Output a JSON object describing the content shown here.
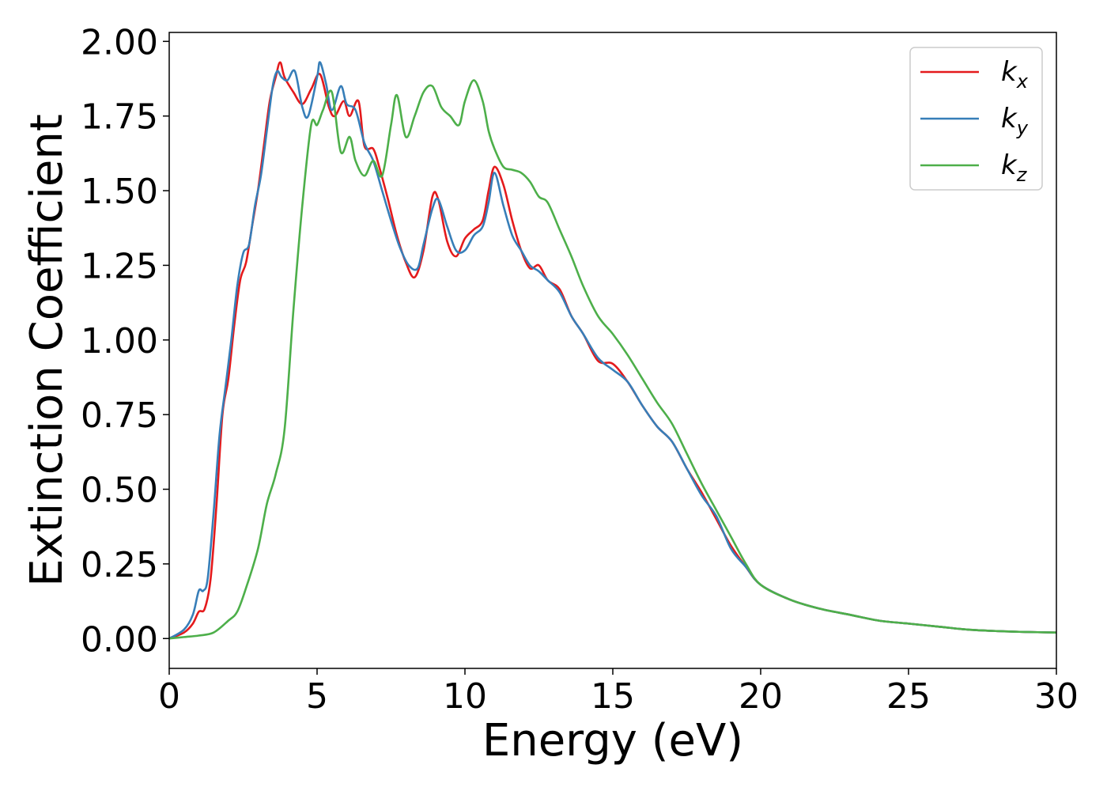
{
  "chart_data": {
    "type": "line",
    "title": "",
    "xlabel": "Energy (eV)",
    "ylabel": "Extinction Coefficient",
    "xlim": [
      0,
      30
    ],
    "ylim": [
      -0.1,
      2.03
    ],
    "xticks": [
      0,
      5,
      10,
      15,
      20,
      25,
      30
    ],
    "yticks": [
      "0.00",
      "0.25",
      "0.50",
      "0.75",
      "1.00",
      "1.25",
      "1.50",
      "1.75",
      "2.00"
    ],
    "grid": false,
    "legend_position": "top-right",
    "series": [
      {
        "name": "k_x",
        "legend_main": "k",
        "legend_sub": "x",
        "color": "#e41a1c",
        "x": [
          0,
          0.5,
          0.8,
          1.0,
          1.2,
          1.4,
          1.6,
          1.8,
          2.0,
          2.2,
          2.4,
          2.6,
          2.8,
          3.0,
          3.2,
          3.4,
          3.6,
          3.75,
          3.9,
          4.2,
          4.5,
          4.8,
          5.1,
          5.4,
          5.6,
          5.9,
          6.1,
          6.4,
          6.6,
          6.9,
          7.1,
          7.4,
          7.7,
          8.0,
          8.3,
          8.6,
          8.9,
          9.1,
          9.4,
          9.7,
          10.0,
          10.3,
          10.6,
          10.8,
          11.0,
          11.3,
          11.6,
          11.9,
          12.2,
          12.5,
          12.8,
          13.2,
          13.6,
          14.0,
          14.5,
          15.0,
          15.5,
          16.0,
          16.5,
          17.0,
          17.5,
          18.0,
          18.5,
          19.0,
          19.5,
          20.0,
          21.0,
          22.0,
          23.0,
          24.0,
          25.0,
          26.0,
          27.0,
          28.0,
          29.0,
          30.0
        ],
        "y": [
          0,
          0.02,
          0.05,
          0.09,
          0.1,
          0.2,
          0.45,
          0.75,
          0.87,
          1.05,
          1.2,
          1.26,
          1.38,
          1.5,
          1.65,
          1.8,
          1.88,
          1.93,
          1.88,
          1.83,
          1.79,
          1.84,
          1.89,
          1.78,
          1.75,
          1.8,
          1.75,
          1.8,
          1.65,
          1.64,
          1.58,
          1.47,
          1.35,
          1.26,
          1.21,
          1.3,
          1.48,
          1.47,
          1.33,
          1.28,
          1.34,
          1.37,
          1.4,
          1.5,
          1.58,
          1.52,
          1.4,
          1.3,
          1.24,
          1.25,
          1.2,
          1.17,
          1.08,
          1.02,
          0.93,
          0.92,
          0.86,
          0.78,
          0.71,
          0.66,
          0.57,
          0.49,
          0.4,
          0.31,
          0.24,
          0.18,
          0.13,
          0.1,
          0.08,
          0.06,
          0.05,
          0.04,
          0.03,
          0.025,
          0.022,
          0.02
        ]
      },
      {
        "name": "k_y",
        "legend_main": "k",
        "legend_sub": "y",
        "color": "#377eb8",
        "x": [
          0,
          0.5,
          0.8,
          1.0,
          1.15,
          1.3,
          1.5,
          1.7,
          1.9,
          2.1,
          2.3,
          2.5,
          2.7,
          2.9,
          3.1,
          3.3,
          3.5,
          3.65,
          3.8,
          4.0,
          4.25,
          4.5,
          4.7,
          5.0,
          5.1,
          5.3,
          5.5,
          5.8,
          6.0,
          6.3,
          6.6,
          6.9,
          7.2,
          7.5,
          7.8,
          8.1,
          8.4,
          8.6,
          8.9,
          9.1,
          9.4,
          9.7,
          10.0,
          10.3,
          10.6,
          10.8,
          11.0,
          11.3,
          11.6,
          11.9,
          12.2,
          12.5,
          12.8,
          13.2,
          13.6,
          14.0,
          14.5,
          15.0,
          15.5,
          16.0,
          16.5,
          17.0,
          17.5,
          18.0,
          18.5,
          19.0,
          19.5,
          20.0,
          21.0,
          22.0,
          23.0,
          24.0,
          25.0,
          26.0,
          27.0,
          28.0,
          29.0,
          30.0
        ],
        "y": [
          0,
          0.03,
          0.08,
          0.16,
          0.16,
          0.2,
          0.42,
          0.68,
          0.84,
          1.0,
          1.18,
          1.29,
          1.32,
          1.45,
          1.55,
          1.7,
          1.85,
          1.9,
          1.88,
          1.87,
          1.9,
          1.78,
          1.75,
          1.88,
          1.93,
          1.86,
          1.77,
          1.85,
          1.79,
          1.77,
          1.66,
          1.6,
          1.5,
          1.4,
          1.31,
          1.25,
          1.24,
          1.32,
          1.44,
          1.47,
          1.38,
          1.3,
          1.3,
          1.35,
          1.38,
          1.46,
          1.56,
          1.45,
          1.35,
          1.3,
          1.25,
          1.23,
          1.2,
          1.16,
          1.08,
          1.02,
          0.94,
          0.9,
          0.86,
          0.78,
          0.71,
          0.66,
          0.57,
          0.48,
          0.41,
          0.3,
          0.24,
          0.18,
          0.13,
          0.1,
          0.08,
          0.06,
          0.05,
          0.04,
          0.03,
          0.025,
          0.022,
          0.02
        ]
      },
      {
        "name": "k_z",
        "legend_main": "k",
        "legend_sub": "z",
        "color": "#4daf4a",
        "x": [
          0,
          0.5,
          1.0,
          1.5,
          2.0,
          2.3,
          2.6,
          3.0,
          3.3,
          3.6,
          3.9,
          4.2,
          4.5,
          4.8,
          5.0,
          5.2,
          5.5,
          5.8,
          6.1,
          6.3,
          6.6,
          6.9,
          7.2,
          7.5,
          7.7,
          8.0,
          8.3,
          8.6,
          8.9,
          9.2,
          9.5,
          9.8,
          10.0,
          10.3,
          10.6,
          10.8,
          11.0,
          11.3,
          11.6,
          11.9,
          12.2,
          12.5,
          12.8,
          13.2,
          13.6,
          14.0,
          14.5,
          15.0,
          15.5,
          16.0,
          16.5,
          17.0,
          17.5,
          18.0,
          18.5,
          19.0,
          19.5,
          20.0,
          21.0,
          22.0,
          23.0,
          24.0,
          25.0,
          26.0,
          27.0,
          28.0,
          29.0,
          30.0
        ],
        "y": [
          0,
          0.005,
          0.01,
          0.02,
          0.06,
          0.09,
          0.17,
          0.3,
          0.45,
          0.55,
          0.7,
          1.1,
          1.45,
          1.72,
          1.72,
          1.77,
          1.83,
          1.63,
          1.68,
          1.6,
          1.55,
          1.6,
          1.55,
          1.72,
          1.82,
          1.68,
          1.75,
          1.83,
          1.85,
          1.78,
          1.75,
          1.72,
          1.8,
          1.87,
          1.8,
          1.7,
          1.64,
          1.58,
          1.57,
          1.56,
          1.53,
          1.48,
          1.46,
          1.37,
          1.28,
          1.18,
          1.08,
          1.02,
          0.95,
          0.87,
          0.79,
          0.72,
          0.62,
          0.52,
          0.43,
          0.34,
          0.25,
          0.18,
          0.13,
          0.1,
          0.08,
          0.06,
          0.05,
          0.04,
          0.03,
          0.025,
          0.022,
          0.02
        ]
      }
    ]
  }
}
